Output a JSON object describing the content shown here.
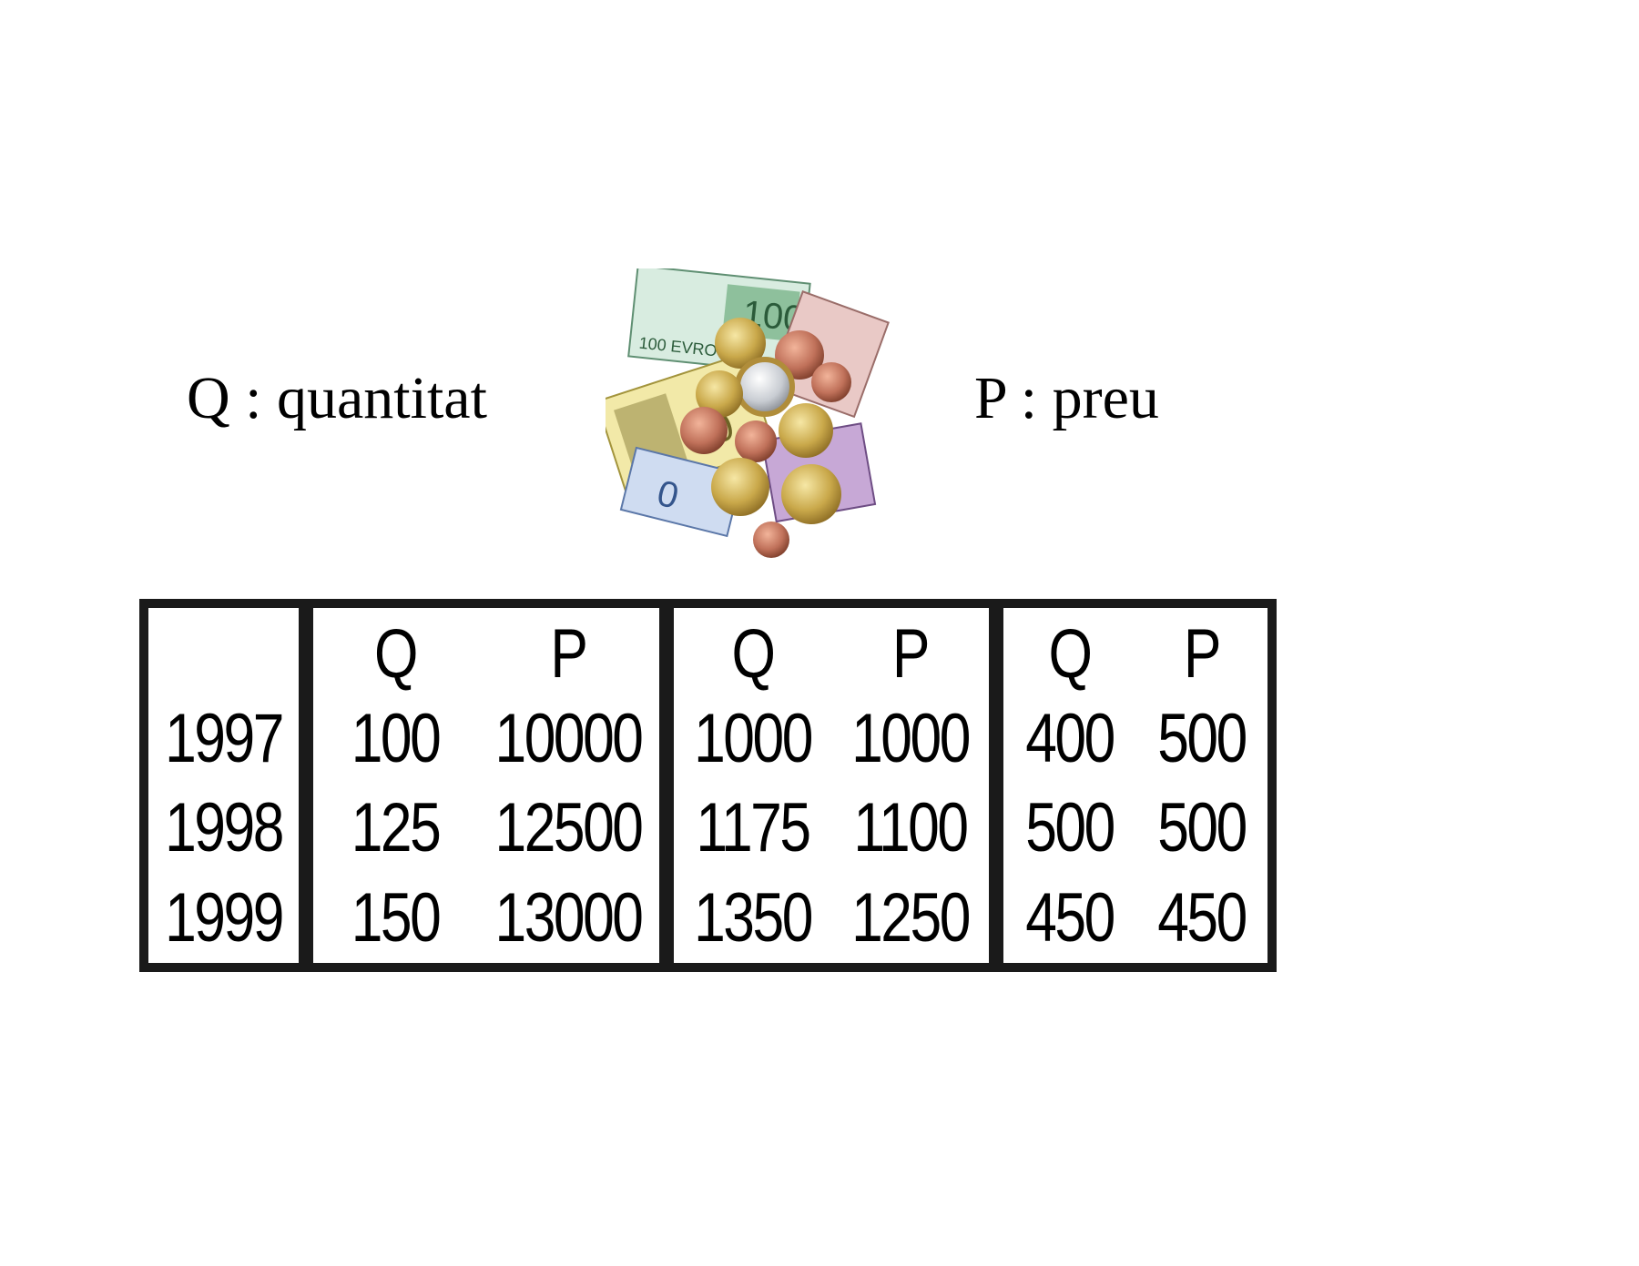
{
  "legend": {
    "q": "Q : quantitat",
    "p": "P : preu"
  },
  "illustration": "euro-notes-and-coins",
  "table": {
    "years": [
      "1997",
      "1998",
      "1999"
    ],
    "groups": [
      {
        "headers": [
          "Q",
          "P"
        ],
        "rows": [
          [
            "100",
            "10000"
          ],
          [
            "125",
            "12500"
          ],
          [
            "150",
            "13000"
          ]
        ]
      },
      {
        "headers": [
          "Q",
          "P"
        ],
        "rows": [
          [
            "1000",
            "1000"
          ],
          [
            "1175",
            "1100"
          ],
          [
            "1350",
            "1250"
          ]
        ]
      },
      {
        "headers": [
          "Q",
          "P"
        ],
        "rows": [
          [
            "400",
            "500"
          ],
          [
            "500",
            "500"
          ],
          [
            "450",
            "450"
          ]
        ]
      }
    ]
  },
  "colors": {
    "border": "#1a1a1a",
    "background": "#ffffff"
  }
}
